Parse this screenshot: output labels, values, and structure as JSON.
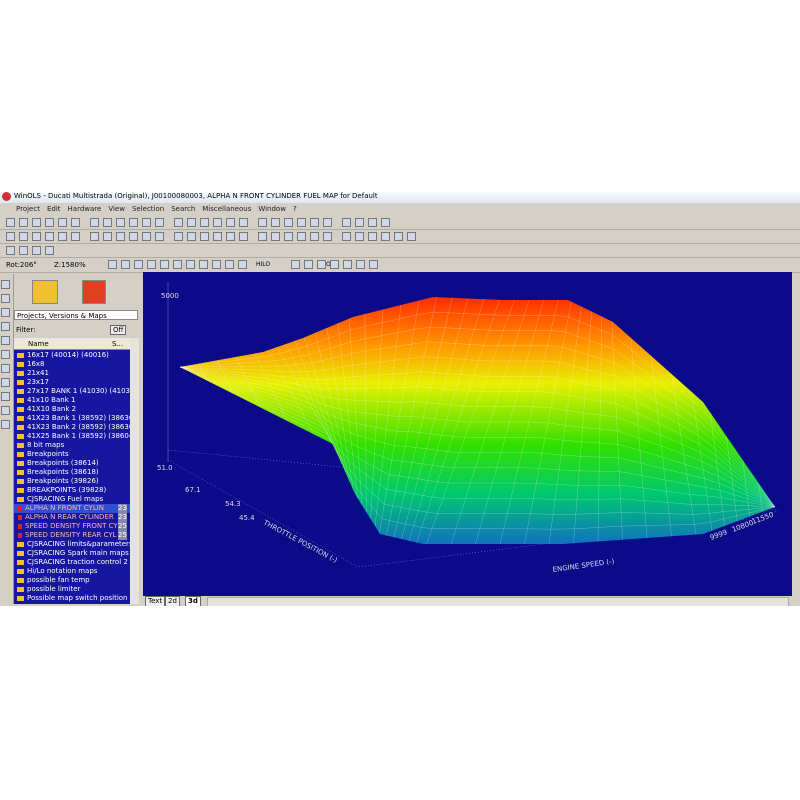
{
  "window": {
    "title": "WinOLS - Ducati Multistrada (Original), J00100080003, ALPHA N FRONT CYLINDER FUEL MAP for Default",
    "menu": [
      "Project",
      "Edit",
      "Hardware",
      "View",
      "Selection",
      "Search",
      "Miscellaneous",
      "Window",
      "?"
    ],
    "toolbar": {
      "rotation": "Rot:206°",
      "zoom": "Z:1580%",
      "hilo": "HILO",
      "org": "Org"
    }
  },
  "panel": {
    "dropdown": "Projects, Versions & Maps",
    "filter": "Filter:",
    "filter_button": "Off",
    "columns": [
      "Name",
      "S..."
    ],
    "items": [
      {
        "name": "16x17 (40014) (40016)"
      },
      {
        "name": "16x8"
      },
      {
        "name": "21x41"
      },
      {
        "name": "23x17"
      },
      {
        "name": "27x17 BANK 1 (41030) (41032"
      },
      {
        "name": "41x10 Bank 1"
      },
      {
        "name": "41X10 Bank 2"
      },
      {
        "name": "41X23 Bank 1 (38592) (38630"
      },
      {
        "name": "41X23 Bank 2 (38592) (38630"
      },
      {
        "name": "41X25 Bank 1 (38592) (38604"
      },
      {
        "name": "8 bit maps"
      },
      {
        "name": "Breakpoints"
      },
      {
        "name": "Breakpoints (38614)"
      },
      {
        "name": "Breakpoints (38618)"
      },
      {
        "name": "Breakpoints (39826)"
      },
      {
        "name": "BREAKPOINTS (39828)"
      },
      {
        "name": "CJSRACING Fuel maps"
      },
      {
        "name": "ALPHA N FRONT CYLIN",
        "size": "23"
      },
      {
        "name": "ALPHA N REAR CYLINDER",
        "size": "23"
      },
      {
        "name": "SPEED DENSITY FRONT CY",
        "size": "25"
      },
      {
        "name": "SPEED DENSITY REAR CYL",
        "size": "25"
      },
      {
        "name": "CJSRACING limits&parameters"
      },
      {
        "name": "CJSRACING Spark main maps"
      },
      {
        "name": "CJSRACING traction control 2"
      },
      {
        "name": "Hi/Lo notation maps"
      },
      {
        "name": "possible fan temp"
      },
      {
        "name": "possible limiter"
      },
      {
        "name": "Possible map switch position"
      }
    ]
  },
  "view": {
    "z_label": "5000",
    "floor_label": "51.0",
    "throttle_ticks": [
      "67.1",
      "54.3",
      "45.4"
    ],
    "speed_ticks": [
      "11550",
      "10800",
      "9999"
    ],
    "x_axis": "ENGINE SPEED (-)",
    "y_axis": "THROTTLE POSITION (-)"
  },
  "tabs": [
    "Text",
    "2d",
    "3d"
  ]
}
